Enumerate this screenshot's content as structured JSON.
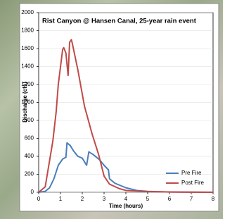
{
  "chart_data": {
    "type": "line",
    "title": "Rist Canyon @ Hansen Canal, 25-year rain event",
    "x_label": "Time (hours)",
    "y_label": "Discharge (cfs)",
    "xlim": [
      0,
      8
    ],
    "xticks": [
      0,
      1,
      2,
      3,
      4,
      5,
      6,
      7,
      8
    ],
    "ylim": [
      0,
      2000
    ],
    "yticks": [
      0,
      200,
      400,
      600,
      800,
      1000,
      1200,
      1400,
      1600,
      1800,
      2000
    ],
    "grid": true,
    "legend": "lower right",
    "series": [
      {
        "name": "Pre Fire",
        "color": "#4a7ebb",
        "x": [
          0,
          0.3,
          0.5,
          0.7,
          0.9,
          1.1,
          1.25,
          1.3,
          1.45,
          1.6,
          1.8,
          2.0,
          2.2,
          2.3,
          2.5,
          2.8,
          3.0,
          3.2,
          3.25,
          3.5,
          4,
          4.5,
          5,
          6,
          8
        ],
        "values": [
          0,
          10,
          50,
          150,
          300,
          370,
          390,
          550,
          520,
          460,
          400,
          380,
          300,
          450,
          420,
          360,
          300,
          250,
          150,
          100,
          50,
          20,
          10,
          3,
          0
        ]
      },
      {
        "name": "Post Fire",
        "color": "#be4b48",
        "x": [
          0,
          0.3,
          0.65,
          0.8,
          0.9,
          1.1,
          1.15,
          1.25,
          1.35,
          1.42,
          1.5,
          1.55,
          1.8,
          2.1,
          2.45,
          2.75,
          3.0,
          3.25,
          3.7,
          4,
          5,
          6,
          8
        ],
        "values": [
          0,
          60,
          570,
          890,
          1200,
          1590,
          1610,
          1550,
          1300,
          1670,
          1700,
          1650,
          1360,
          960,
          650,
          420,
          180,
          90,
          40,
          20,
          8,
          3,
          0
        ]
      }
    ]
  }
}
